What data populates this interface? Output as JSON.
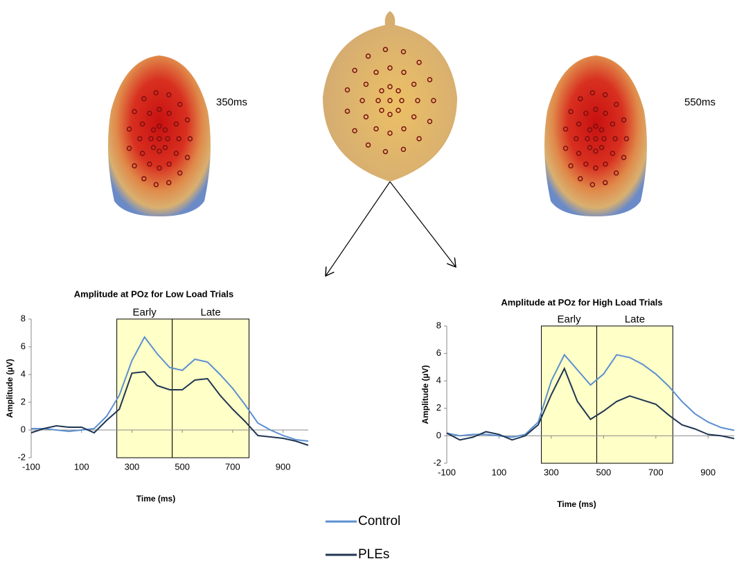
{
  "chart_data": [
    {
      "type": "line",
      "title": "Amplitude at POz for Low Load Trials",
      "x_label": "Time (ms)",
      "y_label": "Amplitude (µV)",
      "x": [
        -100,
        -50,
        0,
        50,
        100,
        150,
        200,
        250,
        300,
        350,
        400,
        450,
        500,
        550,
        600,
        650,
        700,
        750,
        800,
        850,
        900,
        950,
        1000
      ],
      "series": [
        {
          "name": "Control",
          "color": "#5b8fd0",
          "values": [
            0.1,
            0.1,
            0,
            -0.1,
            0,
            0.1,
            1.0,
            2.5,
            5.0,
            6.7,
            5.5,
            4.5,
            4.3,
            5.1,
            4.9,
            4.0,
            3.0,
            1.8,
            0.5,
            0,
            -0.4,
            -0.7,
            -0.8
          ]
        },
        {
          "name": "PLEs",
          "color": "#1f3552",
          "values": [
            -0.2,
            0.1,
            0.3,
            0.2,
            0.2,
            -0.2,
            0.7,
            1.5,
            4.1,
            4.2,
            3.2,
            2.9,
            2.9,
            3.6,
            3.7,
            2.5,
            1.5,
            0.6,
            -0.4,
            -0.5,
            -0.6,
            -0.8,
            -1.1
          ]
        }
      ],
      "xlim": [
        -100,
        1000
      ],
      "xticks": [
        -100,
        100,
        300,
        500,
        700,
        900
      ],
      "ylim": [
        -2,
        8
      ],
      "yticks": [
        -2,
        0,
        2,
        4,
        6,
        8
      ],
      "regions": [
        {
          "label": "Early",
          "start": 240,
          "end": 460
        },
        {
          "label": "Late",
          "start": 460,
          "end": 765
        }
      ],
      "region_color": "#ffffc8"
    },
    {
      "type": "line",
      "title": "Amplitude at POz for High Load Trials",
      "x_label": "Time (ms)",
      "y_label": "Amplitude (µV)",
      "x": [
        -100,
        -50,
        0,
        50,
        100,
        150,
        200,
        250,
        300,
        350,
        400,
        450,
        500,
        550,
        600,
        650,
        700,
        750,
        800,
        850,
        900,
        950,
        1000
      ],
      "series": [
        {
          "color": "#5b8fd0",
          "values": [
            0.2,
            0,
            0.1,
            0.1,
            0,
            -0.1,
            0.1,
            1.0,
            4.0,
            5.9,
            4.8,
            3.7,
            4.5,
            5.9,
            5.7,
            5.2,
            4.5,
            3.6,
            2.5,
            1.6,
            1.0,
            0.6,
            0.4
          ]
        },
        {
          "color": "#1f3552",
          "values": [
            0.2,
            -0.3,
            -0.1,
            0.3,
            0.1,
            -0.3,
            0,
            0.8,
            3.0,
            4.9,
            2.5,
            1.2,
            1.8,
            2.5,
            2.9,
            2.6,
            2.3,
            1.5,
            0.8,
            0.5,
            0.1,
            0.0,
            -0.2
          ]
        }
      ],
      "xlim": [
        -100,
        1000
      ],
      "xticks": [
        -100,
        100,
        300,
        500,
        700,
        900
      ],
      "ylim": [
        -2,
        8
      ],
      "yticks": [
        -2,
        0,
        2,
        4,
        6,
        8
      ],
      "regions": [
        {
          "label": "Early",
          "start": 262,
          "end": 474
        },
        {
          "label": "Late",
          "start": 474,
          "end": 765
        }
      ],
      "region_color": "#ffffc8"
    }
  ],
  "topomap_labels": [
    "350ms",
    "550ms"
  ]
}
